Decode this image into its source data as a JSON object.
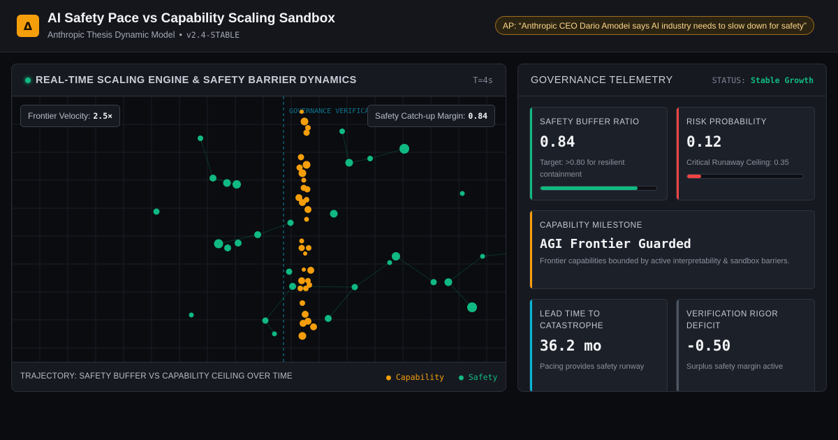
{
  "header": {
    "logo_glyph": "Δ",
    "title": "AI Safety Pace vs Capability Scaling Sandbox",
    "subtitle": "Anthropic Thesis Dynamic Model",
    "subtitle_sep": "•",
    "version": "v2.4-STABLE",
    "news": "AP: “Anthropic CEO Dario Amodei says AI industry needs to slow down for safety”"
  },
  "engine": {
    "title": "REAL-TIME SCALING ENGINE & SAFETY BARRIER DYNAMICS",
    "time": "T=4s",
    "barrier_label": "GOVERNANCE VERIFICATION",
    "velocity_label": "Frontier Velocity:",
    "velocity_value": "2.5×",
    "margin_label": "Safety Catch-up Margin:",
    "margin_value": "0.84",
    "trajectory_title": "TRAJECTORY: SAFETY BUFFER VS CAPABILITY CEILING OVER TIME",
    "legend_capability": "● Capability",
    "legend_safety": "● Safety",
    "colors": {
      "capability": "#f59e0b",
      "safety": "#10b981",
      "barrier": "#0e7490"
    }
  },
  "governance": {
    "title": "GOVERNANCE TELEMETRY",
    "status_label": "STATUS:",
    "status_value": "Stable Growth",
    "cards": [
      {
        "label": "SAFETY BUFFER RATIO",
        "value": "0.84",
        "note": "Target: >0.80 for resilient containment",
        "meter": 0.84,
        "accent": "#10b981"
      },
      {
        "label": "RISK PROBABILITY",
        "value": "0.12",
        "note": "Critical Runaway Ceiling: 0.35",
        "meter": 0.12,
        "accent": "#ef4444"
      },
      {
        "label": "CAPABILITY MILESTONE",
        "value": "AGI Frontier Guarded",
        "note": "Frontier capabilities bounded by active interpretability & sandbox barriers.",
        "accent": "#f59e0b"
      },
      {
        "label": "LEAD TIME TO CATASTROPHE",
        "value": "36.2 mo",
        "note": "Pacing provides safety runway",
        "accent": "#06b6d4"
      },
      {
        "label": "VERIFICATION RIGOR DEFICIT",
        "value": "-0.50",
        "note": "Surplus safety margin active",
        "accent": "#4b5563"
      }
    ]
  }
}
